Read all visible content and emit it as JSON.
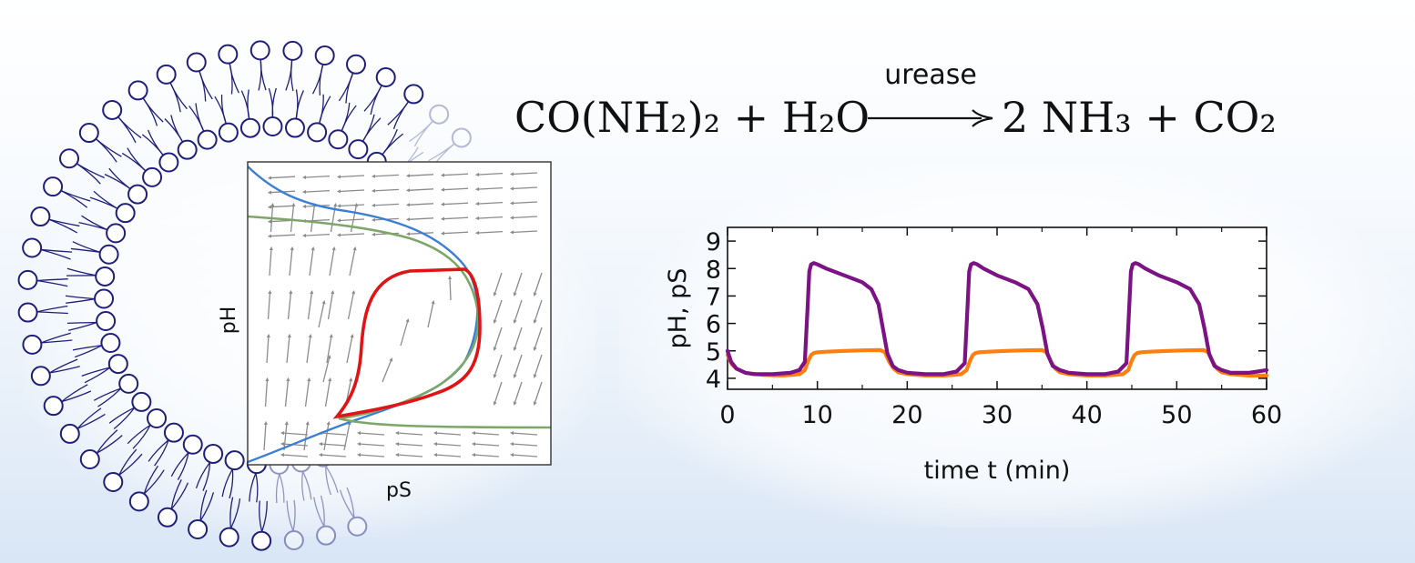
{
  "reaction": {
    "lhs": "CO(NH₂)₂ + H₂O",
    "catalyst": "urease",
    "rhs": "2 NH₃ + CO₂"
  },
  "phase_portrait": {
    "xlabel": "pS",
    "ylabel": "pH",
    "colors": {
      "nullcline_blue": "#3a7fd5",
      "nullcline_green": "#7ea66a",
      "limit_cycle": "#e01414",
      "flow": "#8c8c8c"
    }
  },
  "chart_data": {
    "type": "line",
    "xlabel": "time t (min)",
    "ylabel": "pH, pS",
    "xlim": [
      0,
      60
    ],
    "ylim": [
      3.6,
      9.5
    ],
    "xticks": [
      0,
      10,
      20,
      30,
      40,
      50,
      60
    ],
    "yticks": [
      4,
      5,
      6,
      7,
      8,
      9
    ],
    "grid": false,
    "series": [
      {
        "color": "#ff7f0e",
        "x": [
          0,
          0.5,
          1,
          2,
          4,
          6,
          7,
          8,
          8.6,
          9,
          9.3,
          9.6,
          10,
          11,
          13,
          15,
          17,
          17.5,
          18,
          18.5,
          19,
          20,
          22,
          24,
          25,
          26,
          26.6,
          27,
          27.3,
          27.6,
          28,
          29,
          31,
          33,
          35,
          35.5,
          36,
          36.5,
          37,
          38,
          40,
          42,
          43,
          44,
          44.6,
          45,
          45.3,
          45.6,
          46,
          47,
          49,
          51,
          53,
          53.5,
          54,
          54.5,
          55,
          56,
          58,
          60
        ],
        "y": [
          4.85,
          4.5,
          4.35,
          4.2,
          4.12,
          4.1,
          4.12,
          4.15,
          4.3,
          4.65,
          4.85,
          4.92,
          4.95,
          4.97,
          5.0,
          5.02,
          5.03,
          4.95,
          4.6,
          4.35,
          4.22,
          4.15,
          4.1,
          4.1,
          4.12,
          4.15,
          4.3,
          4.65,
          4.85,
          4.92,
          4.95,
          4.97,
          5.0,
          5.02,
          5.03,
          4.95,
          4.6,
          4.35,
          4.22,
          4.15,
          4.1,
          4.1,
          4.12,
          4.15,
          4.3,
          4.65,
          4.85,
          4.92,
          4.95,
          4.97,
          5.0,
          5.02,
          5.03,
          4.95,
          4.6,
          4.35,
          4.22,
          4.15,
          4.1,
          4.1
        ]
      },
      {
        "color": "#7b1385",
        "x": [
          0,
          0.4,
          1,
          2,
          3,
          5,
          7,
          8,
          8.6,
          8.9,
          9.1,
          9.3,
          9.6,
          10,
          11,
          13,
          15,
          16,
          16.8,
          17.3,
          17.8,
          18.4,
          19,
          20,
          22,
          24,
          25.5,
          26.4,
          26.7,
          26.9,
          27.1,
          27.4,
          27.8,
          28.5,
          30,
          32,
          33.5,
          34.5,
          35.1,
          35.6,
          36.2,
          37,
          38,
          40,
          42,
          43.5,
          44.4,
          44.7,
          44.9,
          45.1,
          45.4,
          45.8,
          46.5,
          48,
          50,
          51.5,
          52.5,
          53.1,
          53.6,
          54.2,
          55,
          56,
          58,
          60
        ],
        "y": [
          5.0,
          4.6,
          4.35,
          4.2,
          4.15,
          4.15,
          4.2,
          4.3,
          4.6,
          6.5,
          7.9,
          8.15,
          8.2,
          8.15,
          8.0,
          7.75,
          7.5,
          7.25,
          6.7,
          5.8,
          4.9,
          4.45,
          4.3,
          4.2,
          4.15,
          4.15,
          4.25,
          4.55,
          6.5,
          7.9,
          8.15,
          8.2,
          8.15,
          8.0,
          7.75,
          7.5,
          7.25,
          6.7,
          5.8,
          4.9,
          4.45,
          4.3,
          4.2,
          4.15,
          4.15,
          4.25,
          4.55,
          6.5,
          7.9,
          8.15,
          8.2,
          8.15,
          8.0,
          7.75,
          7.5,
          7.25,
          6.7,
          5.8,
          4.9,
          4.45,
          4.3,
          4.2,
          4.2,
          4.3
        ]
      }
    ]
  }
}
